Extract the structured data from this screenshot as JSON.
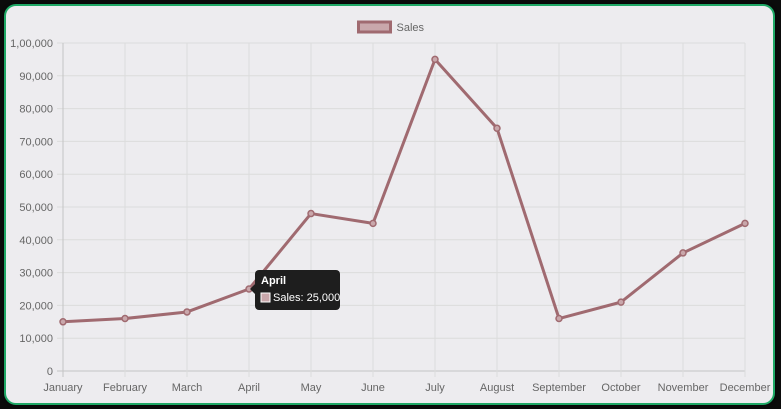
{
  "chart_data": {
    "type": "line",
    "categories": [
      "January",
      "February",
      "March",
      "April",
      "May",
      "June",
      "July",
      "August",
      "September",
      "October",
      "November",
      "December"
    ],
    "series": [
      {
        "name": "Sales",
        "values": [
          15000,
          16000,
          18000,
          25000,
          48000,
          45000,
          95000,
          74000,
          16000,
          21000,
          36000,
          45000
        ]
      }
    ],
    "ylim": [
      0,
      100000
    ],
    "ytick_labels": [
      "0",
      "10,000",
      "20,000",
      "30,000",
      "40,000",
      "50,000",
      "60,000",
      "70,000",
      "80,000",
      "90,000",
      "1,00,000"
    ],
    "grid": true,
    "legend_position": "top",
    "tooltip": {
      "title": "April",
      "label": "Sales: 25,000"
    },
    "colors": {
      "line": "#a06a70",
      "legend_fill": "#c9a7ab",
      "tooltip_bg": "#1e1e1e",
      "panel_bg": "#edecef",
      "panel_border": "#1fa866"
    }
  }
}
